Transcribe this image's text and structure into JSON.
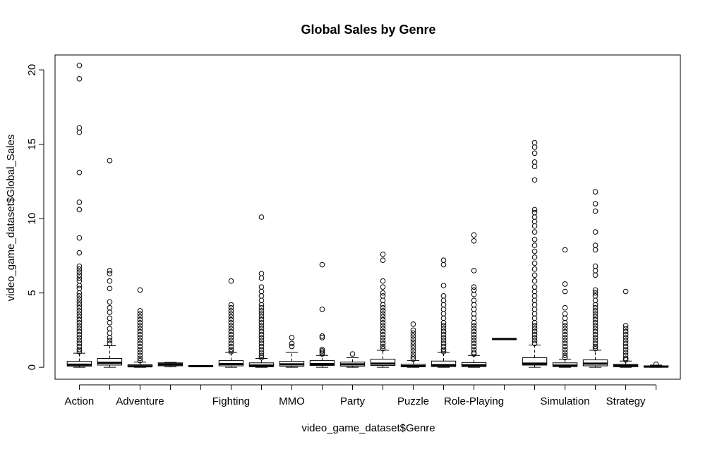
{
  "chart_data": {
    "type": "boxplot",
    "title": "Global Sales by Genre",
    "xlabel": "video_game_dataset$Genre",
    "ylabel": "video_game_dataset$Global_Sales",
    "ylim": [
      -0.8,
      21.0
    ],
    "yticks": [
      0,
      5,
      10,
      15,
      20
    ],
    "grid": false,
    "legend": "none",
    "categories": [
      "Action",
      "",
      "Adventure",
      "",
      "",
      "Fighting",
      "",
      "MMO",
      "",
      "Party",
      "",
      "Puzzle",
      "",
      "Role-Playing",
      "",
      "",
      "Simulation",
      "",
      "Strategy",
      ""
    ],
    "boxes": [
      {
        "whisker_low": 0.0,
        "q1": 0.08,
        "median": 0.18,
        "q3": 0.4,
        "whisker_high": 0.95,
        "outliers": [
          20.3,
          19.4,
          16.1,
          15.8,
          13.1,
          11.1,
          10.6,
          8.7,
          7.7,
          6.8,
          6.6,
          6.4,
          6.2,
          6.0,
          5.8,
          5.5,
          5.3,
          5.0,
          4.8,
          4.6,
          4.4,
          4.2,
          4.0,
          3.8,
          3.6,
          3.4,
          3.2,
          3.0,
          2.8,
          2.6,
          2.4,
          2.2,
          2.0,
          1.8,
          1.6,
          1.4,
          1.2,
          1.05
        ]
      },
      {
        "whisker_low": 0.0,
        "q1": 0.15,
        "median": 0.3,
        "q3": 0.6,
        "whisker_high": 1.45,
        "outliers": [
          13.9,
          6.5,
          6.3,
          5.8,
          5.3,
          4.4,
          4.0,
          3.7,
          3.3,
          3.0,
          2.6,
          2.3,
          2.0,
          1.8,
          1.6
        ]
      },
      {
        "whisker_low": 0.0,
        "q1": 0.03,
        "median": 0.07,
        "q3": 0.17,
        "whisker_high": 0.35,
        "outliers": [
          5.2,
          3.8,
          3.6,
          3.4,
          3.2,
          3.0,
          2.8,
          2.6,
          2.4,
          2.2,
          2.0,
          1.8,
          1.6,
          1.4,
          1.2,
          1.0,
          0.8,
          0.6,
          0.45
        ]
      },
      {
        "whisker_low": 0.03,
        "q1": 0.1,
        "median": 0.2,
        "q3": 0.3,
        "whisker_high": 0.33,
        "outliers": []
      },
      {
        "whisker_low": 0.05,
        "q1": 0.06,
        "median": 0.08,
        "q3": 0.1,
        "whisker_high": 0.11,
        "outliers": []
      },
      {
        "whisker_low": 0.0,
        "q1": 0.1,
        "median": 0.22,
        "q3": 0.45,
        "whisker_high": 1.0,
        "outliers": [
          5.8,
          4.2,
          4.0,
          3.8,
          3.6,
          3.4,
          3.2,
          3.0,
          2.8,
          2.6,
          2.4,
          2.2,
          2.0,
          1.8,
          1.6,
          1.4,
          1.2,
          1.05
        ]
      },
      {
        "whisker_low": 0.0,
        "q1": 0.04,
        "median": 0.12,
        "q3": 0.3,
        "whisker_high": 0.6,
        "outliers": [
          10.1,
          6.3,
          6.0,
          5.4,
          5.1,
          4.8,
          4.5,
          4.2,
          4.0,
          3.8,
          3.6,
          3.4,
          3.2,
          3.0,
          2.8,
          2.6,
          2.4,
          2.2,
          2.0,
          1.8,
          1.6,
          1.4,
          1.2,
          1.0,
          0.8,
          0.65
        ]
      },
      {
        "whisker_low": 0.0,
        "q1": 0.08,
        "median": 0.2,
        "q3": 0.4,
        "whisker_high": 1.0,
        "outliers": [
          2.0,
          1.6,
          1.4
        ]
      },
      {
        "whisker_low": 0.0,
        "q1": 0.12,
        "median": 0.22,
        "q3": 0.45,
        "whisker_high": 0.8,
        "outliers": [
          6.9,
          3.9,
          2.1,
          2.0,
          1.2,
          1.1,
          1.0,
          0.9
        ]
      },
      {
        "whisker_low": 0.0,
        "q1": 0.08,
        "median": 0.2,
        "q3": 0.35,
        "whisker_high": 0.65,
        "outliers": [
          0.9
        ]
      },
      {
        "whisker_low": 0.0,
        "q1": 0.12,
        "median": 0.25,
        "q3": 0.55,
        "whisker_high": 1.15,
        "outliers": [
          7.6,
          7.2,
          5.8,
          5.4,
          5.0,
          4.8,
          4.5,
          4.2,
          4.0,
          3.8,
          3.6,
          3.4,
          3.2,
          3.0,
          2.8,
          2.6,
          2.4,
          2.2,
          2.0,
          1.8,
          1.6,
          1.4,
          1.25
        ]
      },
      {
        "whisker_low": 0.0,
        "q1": 0.03,
        "median": 0.08,
        "q3": 0.2,
        "whisker_high": 0.45,
        "outliers": [
          2.9,
          2.5,
          2.3,
          2.1,
          1.9,
          1.7,
          1.5,
          1.3,
          1.1,
          0.9,
          0.7,
          0.55
        ]
      },
      {
        "whisker_low": 0.0,
        "q1": 0.05,
        "median": 0.15,
        "q3": 0.42,
        "whisker_high": 1.0,
        "outliers": [
          7.2,
          6.9,
          5.5,
          4.8,
          4.5,
          4.2,
          3.9,
          3.6,
          3.3,
          3.0,
          2.8,
          2.6,
          2.4,
          2.2,
          2.0,
          1.8,
          1.6,
          1.4,
          1.2,
          1.05
        ]
      },
      {
        "whisker_low": 0.0,
        "q1": 0.05,
        "median": 0.14,
        "q3": 0.32,
        "whisker_high": 0.8,
        "outliers": [
          8.9,
          8.5,
          6.5,
          5.4,
          5.2,
          4.9,
          4.5,
          4.2,
          3.9,
          3.6,
          3.3,
          3.0,
          2.8,
          2.6,
          2.4,
          2.2,
          2.0,
          1.8,
          1.6,
          1.4,
          1.2,
          1.0,
          0.9
        ]
      },
      {
        "whisker_low": 1.9,
        "q1": 1.9,
        "median": 1.9,
        "q3": 1.9,
        "whisker_high": 1.9,
        "outliers": []
      },
      {
        "whisker_low": 0.0,
        "q1": 0.15,
        "median": 0.25,
        "q3": 0.65,
        "whisker_high": 1.5,
        "outliers": [
          15.1,
          14.8,
          14.4,
          13.8,
          13.5,
          12.6,
          10.6,
          10.4,
          10.1,
          9.8,
          9.5,
          9.1,
          8.6,
          8.2,
          7.8,
          7.4,
          7.0,
          6.6,
          6.2,
          5.8,
          5.4,
          5.1,
          4.8,
          4.5,
          4.2,
          3.9,
          3.6,
          3.3,
          3.0,
          2.8,
          2.6,
          2.4,
          2.2,
          2.0,
          1.8,
          1.6
        ]
      },
      {
        "whisker_low": 0.0,
        "q1": 0.05,
        "median": 0.12,
        "q3": 0.3,
        "whisker_high": 0.55,
        "outliers": [
          7.9,
          5.6,
          5.1,
          4.0,
          3.6,
          3.3,
          3.0,
          2.8,
          2.6,
          2.4,
          2.2,
          2.0,
          1.8,
          1.6,
          1.4,
          1.2,
          1.0,
          0.8,
          0.65
        ]
      },
      {
        "whisker_low": 0.0,
        "q1": 0.1,
        "median": 0.25,
        "q3": 0.5,
        "whisker_high": 1.15,
        "outliers": [
          11.8,
          11.0,
          10.5,
          9.1,
          8.2,
          7.9,
          6.8,
          6.5,
          6.2,
          5.2,
          5.0,
          4.8,
          4.5,
          4.2,
          4.0,
          3.8,
          3.6,
          3.4,
          3.2,
          3.0,
          2.8,
          2.6,
          2.4,
          2.2,
          2.0,
          1.8,
          1.6,
          1.4,
          1.25
        ]
      },
      {
        "whisker_low": 0.0,
        "q1": 0.04,
        "median": 0.1,
        "q3": 0.2,
        "whisker_high": 0.42,
        "outliers": [
          5.1,
          2.8,
          2.6,
          2.4,
          2.2,
          2.0,
          1.8,
          1.6,
          1.4,
          1.2,
          1.0,
          0.8,
          0.6,
          0.5
        ]
      },
      {
        "whisker_low": 0.0,
        "q1": 0.02,
        "median": 0.05,
        "q3": 0.1,
        "whisker_high": 0.15,
        "outliers": [
          0.2
        ]
      }
    ]
  }
}
